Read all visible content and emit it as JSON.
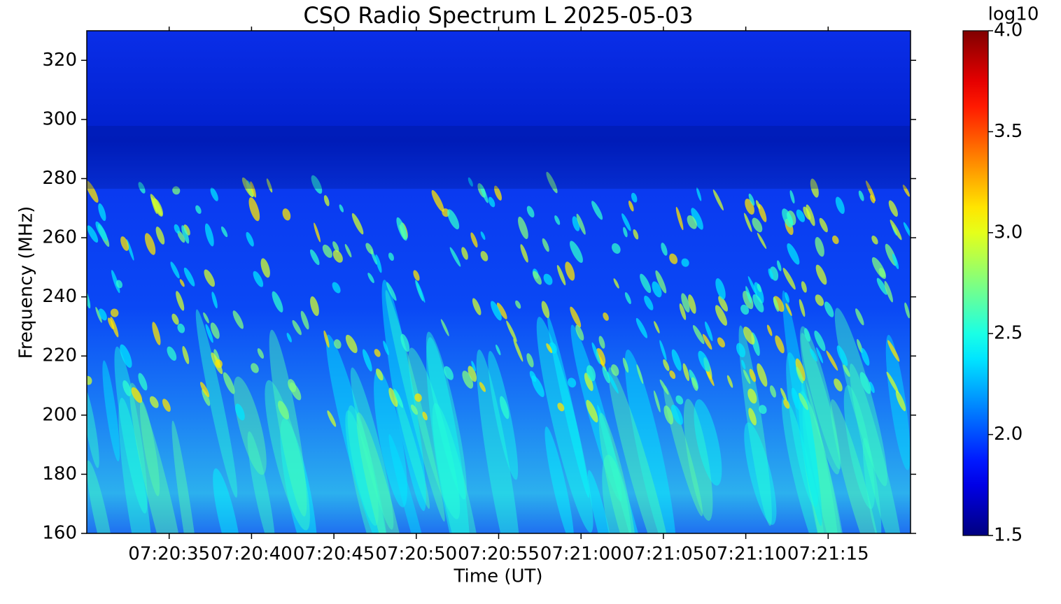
{
  "chart_data": {
    "type": "spectrogram",
    "title": "CSO Radio Spectrum L 2025-05-03",
    "x_label": "Time (UT)",
    "y_label": "Frequency (MHz)",
    "xlim": [
      26430,
      26480
    ],
    "xticks": [
      {
        "value": 26435,
        "label": "07:20:35"
      },
      {
        "value": 26440,
        "label": "07:20:40"
      },
      {
        "value": 26445,
        "label": "07:20:45"
      },
      {
        "value": 26450,
        "label": "07:20:50"
      },
      {
        "value": 26455,
        "label": "07:20:55"
      },
      {
        "value": 26460,
        "label": "07:21:00"
      },
      {
        "value": 26465,
        "label": "07:21:05"
      },
      {
        "value": 26470,
        "label": "07:21:10"
      },
      {
        "value": 26475,
        "label": "07:21:15"
      }
    ],
    "ylim": [
      160,
      330
    ],
    "yticks": [
      160,
      180,
      200,
      220,
      240,
      260,
      280,
      300,
      320
    ],
    "colormap": "jet",
    "colorbar_label": "log10",
    "clim": [
      1.5,
      4.0
    ],
    "cticks": [
      1.5,
      {
        "value": 2.0,
        "label": "2.0"
      },
      2.5,
      {
        "value": 3.0,
        "label": "3.0"
      },
      3.5,
      {
        "value": 4.0,
        "label": "4.0"
      }
    ],
    "grid": false
  }
}
